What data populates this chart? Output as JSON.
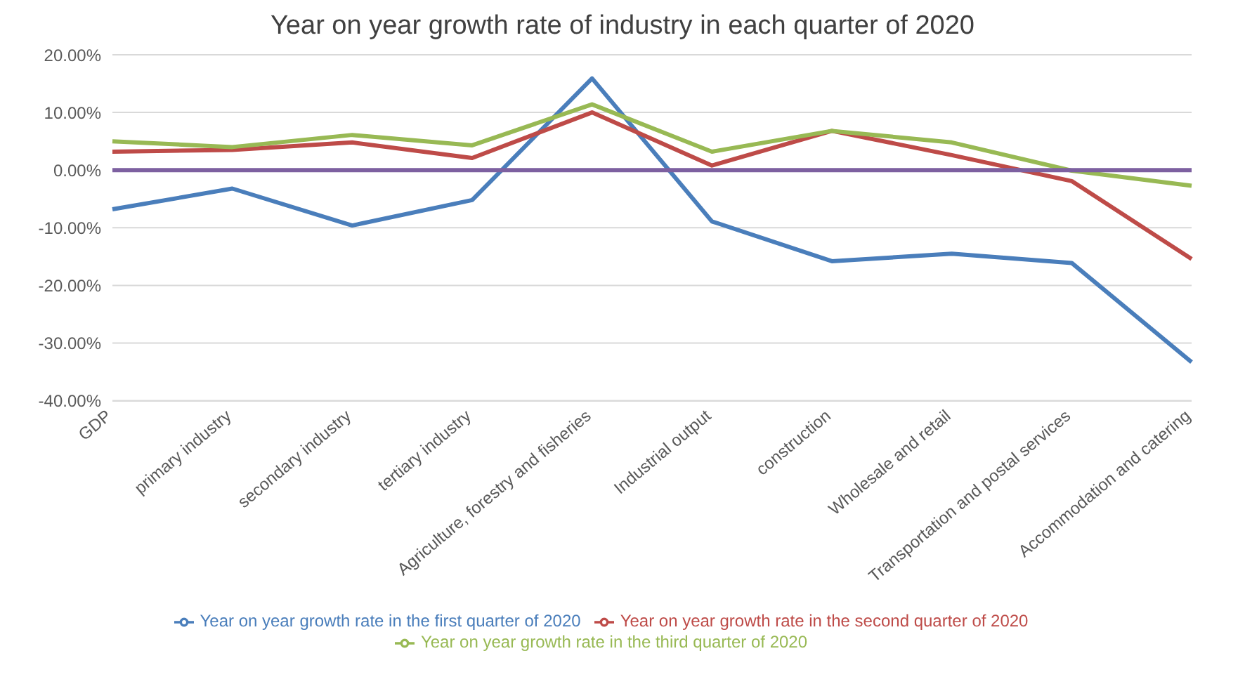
{
  "chart_data": {
    "type": "line",
    "title": "Year on year growth rate of industry in each quarter of 2020",
    "categories": [
      "GDP",
      "primary industry",
      "secondary industry",
      "tertiary industry",
      "Agriculture, forestry and fisheries",
      "Industrial output",
      "construction",
      "Wholesale and retail",
      "Transportation and postal services",
      "Accommodation and catering"
    ],
    "series": [
      {
        "name": "Year on year growth rate in the first quarter of 2020",
        "color": "#4a7ebb",
        "values": [
          -6.8,
          -3.2,
          -9.6,
          -5.2,
          15.9,
          -8.9,
          -15.8,
          -14.5,
          -16.1,
          -33.3
        ]
      },
      {
        "name": "Year on year growth rate in the second quarter of 2020",
        "color": "#be4b48",
        "values": [
          3.2,
          3.5,
          4.8,
          2.1,
          10.0,
          0.8,
          6.8,
          2.6,
          -1.9,
          -15.4
        ]
      },
      {
        "name": "Year on year growth rate in the third quarter of 2020",
        "color": "#98b954",
        "values": [
          5.0,
          4.0,
          6.1,
          4.3,
          11.4,
          3.2,
          6.8,
          4.8,
          -0.1,
          -2.7
        ]
      },
      {
        "color": "#7d60a0",
        "values": [
          0,
          0,
          0,
          0,
          0,
          0,
          0,
          0,
          0,
          0
        ]
      }
    ],
    "ylim": [
      -40,
      20
    ],
    "yticks": [
      {
        "value": -40,
        "label": "-40.00%"
      },
      {
        "value": -30,
        "label": "-30.00%"
      },
      {
        "value": -20,
        "label": "-20.00%"
      },
      {
        "value": -10,
        "label": "-10.00%"
      },
      {
        "value": 0,
        "label": "0.00%"
      },
      {
        "value": 10,
        "label": "10.00%"
      },
      {
        "value": 20,
        "label": "20.00%"
      }
    ],
    "grid": "y",
    "legend": "bottom",
    "marker": "none",
    "line_style": "solid"
  }
}
